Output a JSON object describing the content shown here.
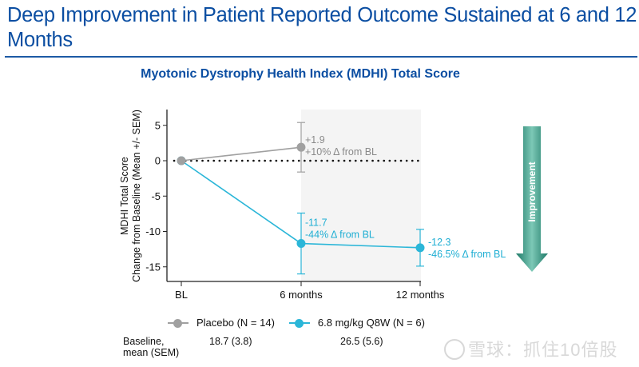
{
  "slide": {
    "title": "Deep Improvement in Patient Reported Outcome Sustained at 6 and 12 Months"
  },
  "chart_data": {
    "type": "line",
    "title": "Myotonic Dystrophy Health Index (MDHI) Total Score",
    "ylabel_line1": "MDHI Total  Score",
    "ylabel_line2": "Change from Baseline (Mean +/-  SEM)",
    "xlabel": "",
    "categories": [
      "BL",
      "6 months",
      "12 months"
    ],
    "ylim": [
      -17,
      7
    ],
    "yticks": [
      5,
      0,
      -5,
      -10,
      -15
    ],
    "ytick_labels": [
      "5",
      "0",
      "-5",
      "-10",
      "-15"
    ],
    "reference_line": 0,
    "shaded_region": [
      "6 months",
      "12 months"
    ],
    "grid": false,
    "legend_position": "bottom",
    "series": [
      {
        "name": "Placebo (N = 14)",
        "color": "#a0a0a0",
        "label_color": "#8a8a8a",
        "points": [
          {
            "x": "BL",
            "y": 0,
            "sem": 0
          },
          {
            "x": "6 months",
            "y": 1.9,
            "sem": 3.5,
            "label1": "+1.9",
            "label2": "+10% Δ from BL"
          }
        ]
      },
      {
        "name": "6.8 mg/kg Q8W (N = 6)",
        "color": "#2bb6d8",
        "label_color": "#1eaed3",
        "points": [
          {
            "x": "BL",
            "y": 0,
            "sem": 0
          },
          {
            "x": "6 months",
            "y": -11.7,
            "sem": 4.3,
            "label1": "-11.7",
            "label2": "-44% Δ from BL"
          },
          {
            "x": "12 months",
            "y": -12.3,
            "sem": 2.6,
            "label1": "-12.3",
            "label2": "-46.5% Δ from BL"
          }
        ]
      }
    ],
    "annotation_arrow": {
      "label": "Improvement",
      "direction": "down",
      "color": "#2e8b7a"
    }
  },
  "baseline_table": {
    "label_line1": "Baseline,",
    "label_line2": "mean (SEM)",
    "placebo": "18.7 (3.8)",
    "treatment": "26.5 (5.6)"
  },
  "watermark": {
    "text": "雪球：抓住10倍股"
  }
}
